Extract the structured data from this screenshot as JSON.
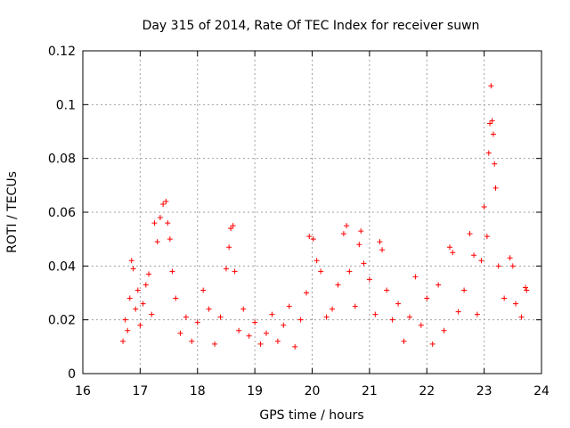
{
  "chart_data": {
    "type": "scatter",
    "title": "Day 315 of 2014, Rate Of TEC Index for receiver suwn",
    "xlabel": "GPS time / hours",
    "ylabel": "ROTI / TECUs",
    "xlim": [
      16,
      24
    ],
    "ylim": [
      0,
      0.12
    ],
    "x_ticks": [
      "16",
      "17",
      "18",
      "19",
      "20",
      "21",
      "22",
      "23",
      "24"
    ],
    "y_ticks": [
      "0",
      "0.02",
      "0.04",
      "0.06",
      "0.08",
      "0.1",
      "0.12"
    ],
    "grid": true,
    "marker": "+",
    "color": "#ff0000",
    "series": [
      {
        "name": "ROTI",
        "points": [
          [
            16.7,
            0.012
          ],
          [
            16.74,
            0.02
          ],
          [
            16.78,
            0.016
          ],
          [
            16.82,
            0.028
          ],
          [
            16.85,
            0.042
          ],
          [
            16.88,
            0.039
          ],
          [
            16.92,
            0.024
          ],
          [
            16.96,
            0.031
          ],
          [
            17.0,
            0.018
          ],
          [
            17.05,
            0.026
          ],
          [
            17.1,
            0.033
          ],
          [
            17.15,
            0.037
          ],
          [
            17.2,
            0.022
          ],
          [
            17.25,
            0.056
          ],
          [
            17.3,
            0.049
          ],
          [
            17.35,
            0.058
          ],
          [
            17.4,
            0.063
          ],
          [
            17.45,
            0.064
          ],
          [
            17.48,
            0.056
          ],
          [
            17.52,
            0.05
          ],
          [
            17.56,
            0.038
          ],
          [
            17.62,
            0.028
          ],
          [
            17.7,
            0.015
          ],
          [
            17.8,
            0.021
          ],
          [
            17.9,
            0.012
          ],
          [
            18.0,
            0.019
          ],
          [
            18.1,
            0.031
          ],
          [
            18.2,
            0.024
          ],
          [
            18.3,
            0.011
          ],
          [
            18.4,
            0.021
          ],
          [
            18.5,
            0.039
          ],
          [
            18.55,
            0.047
          ],
          [
            18.58,
            0.054
          ],
          [
            18.62,
            0.055
          ],
          [
            18.65,
            0.038
          ],
          [
            18.72,
            0.016
          ],
          [
            18.8,
            0.024
          ],
          [
            18.9,
            0.014
          ],
          [
            19.0,
            0.019
          ],
          [
            19.1,
            0.011
          ],
          [
            19.2,
            0.015
          ],
          [
            19.3,
            0.022
          ],
          [
            19.4,
            0.012
          ],
          [
            19.5,
            0.018
          ],
          [
            19.6,
            0.025
          ],
          [
            19.7,
            0.01
          ],
          [
            19.8,
            0.02
          ],
          [
            19.9,
            0.03
          ],
          [
            19.95,
            0.051
          ],
          [
            20.02,
            0.05
          ],
          [
            20.08,
            0.042
          ],
          [
            20.15,
            0.038
          ],
          [
            20.25,
            0.021
          ],
          [
            20.35,
            0.024
          ],
          [
            20.45,
            0.033
          ],
          [
            20.55,
            0.052
          ],
          [
            20.6,
            0.055
          ],
          [
            20.65,
            0.038
          ],
          [
            20.75,
            0.025
          ],
          [
            20.82,
            0.048
          ],
          [
            20.85,
            0.053
          ],
          [
            20.9,
            0.041
          ],
          [
            21.0,
            0.035
          ],
          [
            21.1,
            0.022
          ],
          [
            21.18,
            0.049
          ],
          [
            21.22,
            0.046
          ],
          [
            21.3,
            0.031
          ],
          [
            21.4,
            0.02
          ],
          [
            21.5,
            0.026
          ],
          [
            21.6,
            0.012
          ],
          [
            21.7,
            0.021
          ],
          [
            21.8,
            0.036
          ],
          [
            21.9,
            0.018
          ],
          [
            22.0,
            0.028
          ],
          [
            22.1,
            0.011
          ],
          [
            22.2,
            0.033
          ],
          [
            22.3,
            0.016
          ],
          [
            22.4,
            0.047
          ],
          [
            22.45,
            0.045
          ],
          [
            22.55,
            0.023
          ],
          [
            22.65,
            0.031
          ],
          [
            22.75,
            0.052
          ],
          [
            22.82,
            0.044
          ],
          [
            22.88,
            0.022
          ],
          [
            22.95,
            0.042
          ],
          [
            23.0,
            0.062
          ],
          [
            23.05,
            0.051
          ],
          [
            23.08,
            0.082
          ],
          [
            23.1,
            0.093
          ],
          [
            23.12,
            0.107
          ],
          [
            23.14,
            0.094
          ],
          [
            23.16,
            0.089
          ],
          [
            23.18,
            0.078
          ],
          [
            23.2,
            0.069
          ],
          [
            23.25,
            0.04
          ],
          [
            23.35,
            0.028
          ],
          [
            23.45,
            0.043
          ],
          [
            23.5,
            0.04
          ],
          [
            23.55,
            0.026
          ],
          [
            23.65,
            0.021
          ],
          [
            23.72,
            0.032
          ],
          [
            23.74,
            0.031
          ]
        ]
      }
    ]
  }
}
